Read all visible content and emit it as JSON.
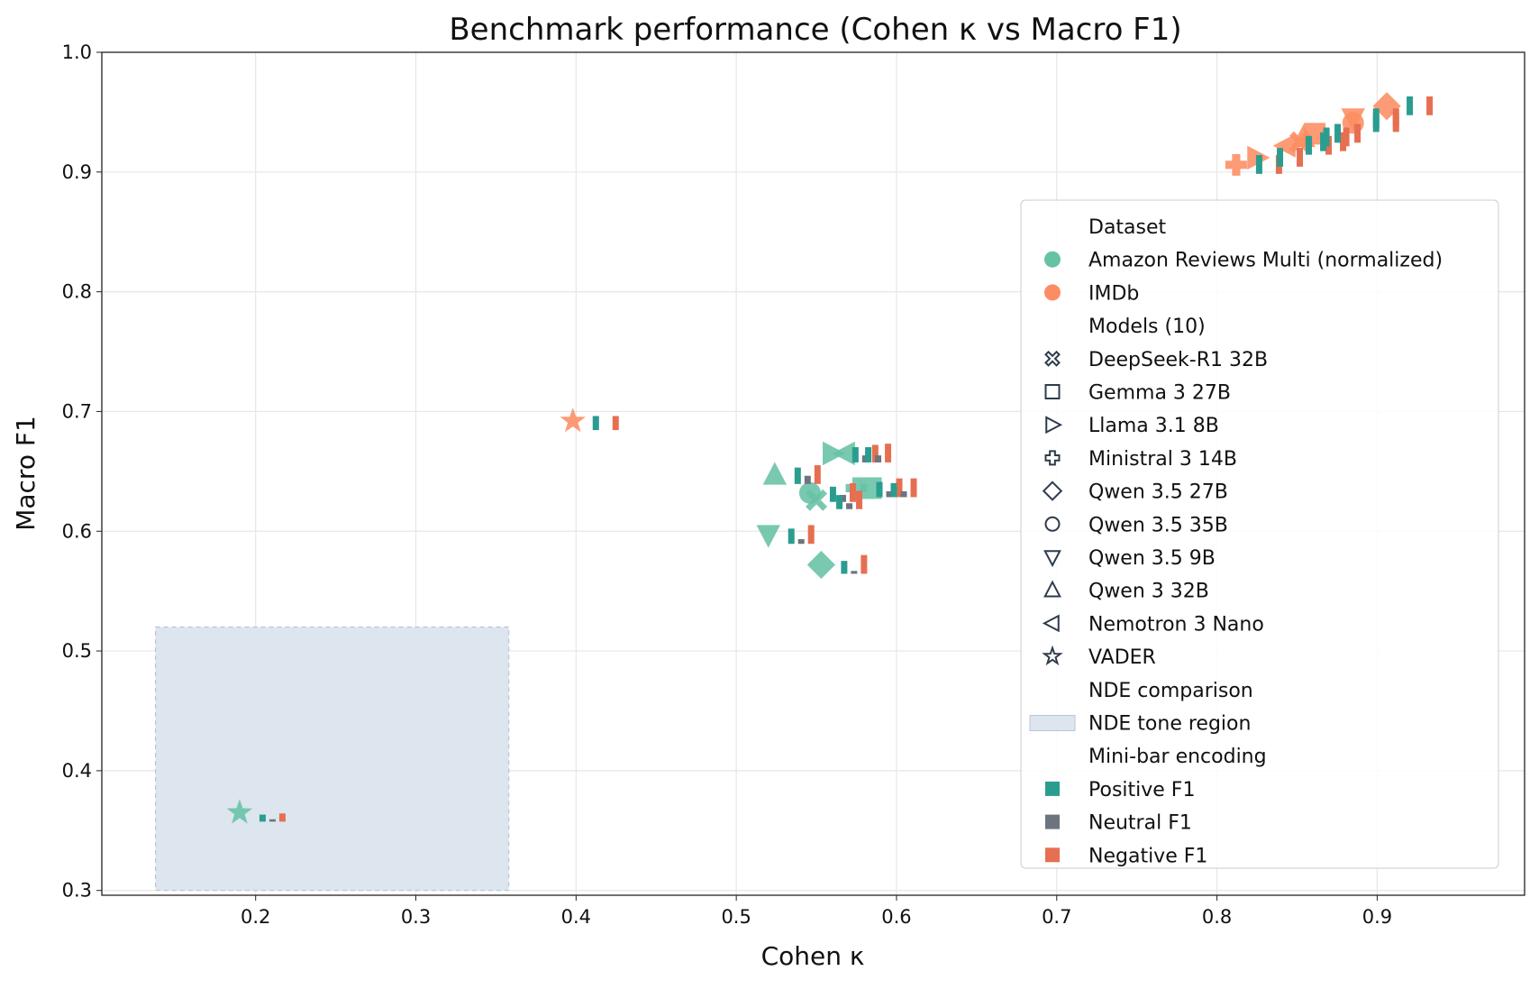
{
  "chart_data": {
    "type": "scatter",
    "title": "Benchmark performance (Cohen κ vs Macro F1)",
    "xlabel": "Cohen κ",
    "ylabel": "Macro F1",
    "xlim": [
      0.104,
      0.992
    ],
    "ylim": [
      0.296,
      1.0
    ],
    "xticks": [
      0.2,
      0.3,
      0.4,
      0.5,
      0.6,
      0.7,
      0.8,
      0.9
    ],
    "yticks": [
      0.3,
      0.4,
      0.5,
      0.6,
      0.7,
      0.8,
      0.9,
      1.0
    ],
    "grid": true,
    "legend_position": "right",
    "colors": {
      "Amazon Reviews Multi (normalized)": "#66c2a5",
      "IMDb": "#fc8d62",
      "positive": "#2a9d8f",
      "neutral": "#6c757d",
      "negative": "#e76f51",
      "nde": "#dde5ee"
    },
    "nde_region": {
      "kappa": [
        0.1375,
        0.358
      ],
      "f1": [
        0.3,
        0.52
      ]
    },
    "points": [
      {
        "dataset": "Amazon Reviews Multi (normalized)",
        "model": "VADER",
        "kappa": 0.19,
        "f1": 0.365,
        "pos": 0.3,
        "neu": 0.1,
        "neg": 0.35
      },
      {
        "dataset": "Amazon Reviews Multi (normalized)",
        "model": "Qwen 3 32B",
        "kappa": 0.524,
        "f1": 0.647,
        "pos": 0.7,
        "neu": 0.35,
        "neg": 0.8
      },
      {
        "dataset": "Amazon Reviews Multi (normalized)",
        "model": "Qwen 3.5 9B",
        "kappa": 0.52,
        "f1": 0.597,
        "pos": 0.65,
        "neu": 0.2,
        "neg": 0.8
      },
      {
        "dataset": "Amazon Reviews Multi (normalized)",
        "model": "Qwen 3.5 27B",
        "kappa": 0.553,
        "f1": 0.572,
        "pos": 0.55,
        "neu": 0.12,
        "neg": 0.8
      },
      {
        "dataset": "Amazon Reviews Multi (normalized)",
        "model": "Qwen 3.5 35B",
        "kappa": 0.546,
        "f1": 0.632,
        "pos": 0.65,
        "neu": 0.3,
        "neg": 0.8
      },
      {
        "dataset": "Amazon Reviews Multi (normalized)",
        "model": "DeepSeek-R1 32B",
        "kappa": 0.55,
        "f1": 0.626,
        "pos": 0.6,
        "neu": 0.25,
        "neg": 0.78
      },
      {
        "dataset": "Amazon Reviews Multi (normalized)",
        "model": "Llama 3.1 8B",
        "kappa": 0.56,
        "f1": 0.665,
        "pos": 0.65,
        "neu": 0.3,
        "neg": 0.75
      },
      {
        "dataset": "Amazon Reviews Multi (normalized)",
        "model": "Nemotron 3 Nano",
        "kappa": 0.568,
        "f1": 0.665,
        "pos": 0.65,
        "neu": 0.3,
        "neg": 0.8
      },
      {
        "dataset": "Amazon Reviews Multi (normalized)",
        "model": "Ministral 3 14B",
        "kappa": 0.575,
        "f1": 0.636,
        "pos": 0.65,
        "neu": 0.25,
        "neg": 0.8
      },
      {
        "dataset": "Amazon Reviews Multi (normalized)",
        "model": "Gemma 3 27B",
        "kappa": 0.584,
        "f1": 0.636,
        "pos": 0.6,
        "neu": 0.25,
        "neg": 0.8
      },
      {
        "dataset": "IMDb",
        "model": "VADER",
        "kappa": 0.398,
        "f1": 0.692,
        "pos": 0.6,
        "neu": 0,
        "neg": 0.6
      },
      {
        "dataset": "IMDb",
        "model": "Ministral 3 14B",
        "kappa": 0.812,
        "f1": 0.906,
        "pos": 0.8,
        "neu": 0,
        "neg": 0.8
      },
      {
        "dataset": "IMDb",
        "model": "Llama 3.1 8B",
        "kappa": 0.825,
        "f1": 0.912,
        "pos": 0.8,
        "neu": 0,
        "neg": 0.8
      },
      {
        "dataset": "IMDb",
        "model": "Nemotron 3 Nano",
        "kappa": 0.843,
        "f1": 0.922,
        "pos": 0.8,
        "neu": 0,
        "neg": 0.8
      },
      {
        "dataset": "IMDb",
        "model": "DeepSeek-R1 32B",
        "kappa": 0.852,
        "f1": 0.925,
        "pos": 0.8,
        "neu": 0,
        "neg": 0.8
      },
      {
        "dataset": "IMDb",
        "model": "Qwen 3 32B",
        "kappa": 0.854,
        "f1": 0.929,
        "pos": 0.8,
        "neu": 0,
        "neg": 0.8
      },
      {
        "dataset": "IMDb",
        "model": "Gemma 3 27B",
        "kappa": 0.861,
        "f1": 0.932,
        "pos": 0.8,
        "neu": 0,
        "neg": 0.8
      },
      {
        "dataset": "IMDb",
        "model": "Qwen 3.5 9B",
        "kappa": 0.885,
        "f1": 0.945,
        "pos": 0.8,
        "neu": 0,
        "neg": 0.8
      },
      {
        "dataset": "IMDb",
        "model": "Qwen 3.5 35B",
        "kappa": 0.885,
        "f1": 0.941,
        "pos": 0.8,
        "neu": 0,
        "neg": 0.8
      },
      {
        "dataset": "IMDb",
        "model": "Qwen 3.5 27B",
        "kappa": 0.906,
        "f1": 0.955,
        "pos": 0.8,
        "neu": 0,
        "neg": 0.8
      }
    ],
    "legend": {
      "dataset_title": "Dataset",
      "datasets": [
        "Amazon Reviews Multi (normalized)",
        "IMDb"
      ],
      "models_title": "Models (10)",
      "models": [
        {
          "label": "DeepSeek-R1 32B",
          "marker": "X"
        },
        {
          "label": "Gemma 3 27B",
          "marker": "square"
        },
        {
          "label": "Llama 3.1 8B",
          "marker": "triangle-right"
        },
        {
          "label": "Ministral 3 14B",
          "marker": "plus"
        },
        {
          "label": "Qwen 3.5 27B",
          "marker": "diamond"
        },
        {
          "label": "Qwen 3.5 35B",
          "marker": "circle"
        },
        {
          "label": "Qwen 3.5 9B",
          "marker": "triangle-down"
        },
        {
          "label": "Qwen 3 32B",
          "marker": "triangle-up"
        },
        {
          "label": "Nemotron 3 Nano",
          "marker": "triangle-left"
        },
        {
          "label": "VADER",
          "marker": "star"
        }
      ],
      "nde_title": "NDE comparison",
      "nde_label": "NDE tone region",
      "minibar_title": "Mini-bar encoding",
      "minibar": [
        "Positive F1",
        "Neutral F1",
        "Negative F1"
      ]
    }
  }
}
